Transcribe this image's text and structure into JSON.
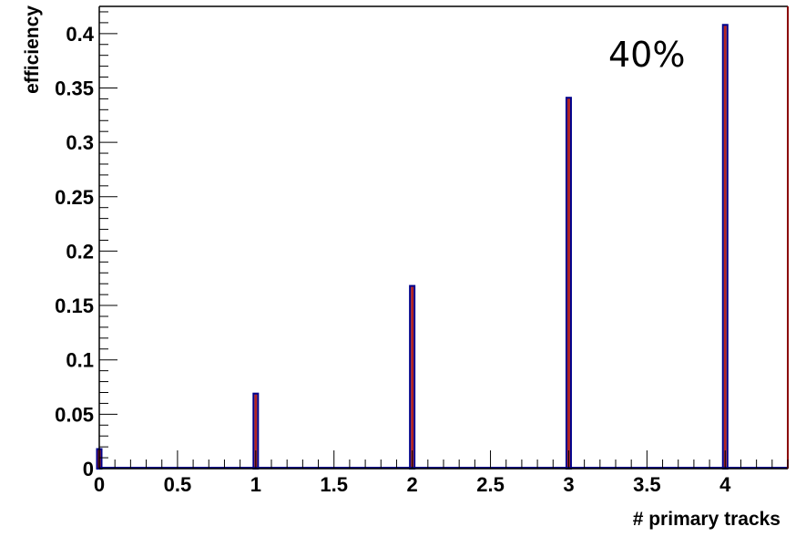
{
  "chart_data": {
    "type": "bar",
    "title": "",
    "xlabel": "# primary tracks",
    "ylabel": "efficiency",
    "annotation": "40%",
    "xlim": [
      0,
      4.4
    ],
    "ylim": [
      0,
      0.425
    ],
    "x_ticks": [
      0,
      0.5,
      1,
      1.5,
      2,
      2.5,
      3,
      3.5,
      4
    ],
    "x_tick_labels": [
      "0",
      "0.5",
      "1",
      "1.5",
      "2",
      "2.5",
      "3",
      "3.5",
      "4"
    ],
    "y_ticks": [
      0,
      0.05,
      0.1,
      0.15,
      0.2,
      0.25,
      0.3,
      0.35,
      0.4
    ],
    "y_tick_labels": [
      "0",
      "0.05",
      "0.1",
      "0.15",
      "0.2",
      "0.25",
      "0.3",
      "0.35",
      "0.4"
    ],
    "x": [
      0,
      1,
      2,
      3,
      4
    ],
    "values": [
      0.018,
      0.069,
      0.168,
      0.341,
      0.408
    ],
    "grid": false,
    "legend": "none",
    "colors": {
      "bar_outline": "#00008b",
      "bar_fill": "#b22222",
      "frame": "#000000",
      "right_edge": "#8b0000"
    }
  }
}
